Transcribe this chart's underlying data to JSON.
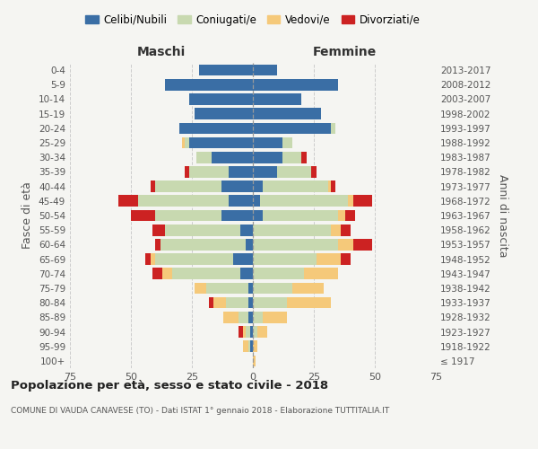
{
  "age_groups": [
    "100+",
    "95-99",
    "90-94",
    "85-89",
    "80-84",
    "75-79",
    "70-74",
    "65-69",
    "60-64",
    "55-59",
    "50-54",
    "45-49",
    "40-44",
    "35-39",
    "30-34",
    "25-29",
    "20-24",
    "15-19",
    "10-14",
    "5-9",
    "0-4"
  ],
  "birth_years": [
    "≤ 1917",
    "1918-1922",
    "1923-1927",
    "1928-1932",
    "1933-1937",
    "1938-1942",
    "1943-1947",
    "1948-1952",
    "1953-1957",
    "1958-1962",
    "1963-1967",
    "1968-1972",
    "1973-1977",
    "1978-1982",
    "1983-1987",
    "1988-1992",
    "1993-1997",
    "1998-2002",
    "2003-2007",
    "2008-2012",
    "2013-2017"
  ],
  "colors": {
    "celibi": "#3a6ea5",
    "coniugati": "#c8d9b0",
    "vedovi": "#f5c97a",
    "divorziati": "#cc2222"
  },
  "maschi": {
    "celibi": [
      0,
      1,
      1,
      2,
      2,
      2,
      5,
      8,
      3,
      5,
      13,
      10,
      13,
      10,
      17,
      26,
      30,
      24,
      26,
      36,
      22
    ],
    "coniugati": [
      0,
      1,
      2,
      4,
      9,
      17,
      28,
      32,
      35,
      31,
      27,
      37,
      27,
      16,
      6,
      2,
      0,
      0,
      0,
      0,
      0
    ],
    "vedovi": [
      0,
      2,
      1,
      6,
      5,
      5,
      4,
      2,
      0,
      0,
      0,
      0,
      0,
      0,
      0,
      1,
      0,
      0,
      0,
      0,
      0
    ],
    "divorziati": [
      0,
      0,
      2,
      0,
      2,
      0,
      4,
      2,
      2,
      5,
      10,
      8,
      2,
      2,
      0,
      0,
      0,
      0,
      0,
      0,
      0
    ]
  },
  "femmine": {
    "celibi": [
      0,
      0,
      0,
      0,
      0,
      0,
      0,
      0,
      0,
      0,
      4,
      3,
      4,
      10,
      12,
      12,
      32,
      28,
      20,
      35,
      10
    ],
    "coniugati": [
      0,
      0,
      2,
      4,
      14,
      16,
      21,
      26,
      35,
      32,
      31,
      36,
      27,
      14,
      8,
      4,
      2,
      0,
      0,
      0,
      0
    ],
    "vedovi": [
      1,
      2,
      4,
      10,
      18,
      13,
      14,
      10,
      6,
      4,
      3,
      2,
      1,
      0,
      0,
      0,
      0,
      0,
      0,
      0,
      0
    ],
    "divorziati": [
      0,
      0,
      0,
      0,
      0,
      0,
      0,
      4,
      8,
      4,
      4,
      8,
      2,
      2,
      2,
      0,
      0,
      0,
      0,
      0,
      0
    ]
  },
  "xlim": 75,
  "title_main": "Popolazione per età, sesso e stato civile - 2018",
  "title_sub": "COMUNE DI VAUDA CANAVESE (TO) - Dati ISTAT 1° gennaio 2018 - Elaborazione TUTTITALIA.IT",
  "ylabel_left": "Fasce di età",
  "ylabel_right": "Anni di nascita",
  "xlabel_left": "Maschi",
  "xlabel_right": "Femmine",
  "legend_labels": [
    "Celibi/Nubili",
    "Coniugati/e",
    "Vedovi/e",
    "Divorziati/e"
  ],
  "bg_color": "#f5f5f2",
  "grid_color": "#cccccc"
}
